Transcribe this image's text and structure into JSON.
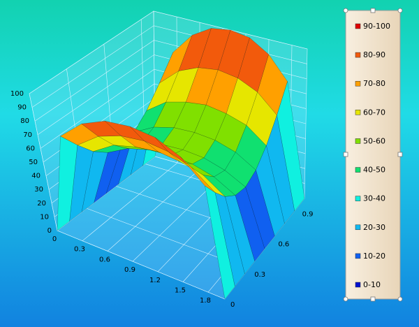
{
  "chart_data": {
    "type": "surface3d",
    "x": [
      0,
      0.25,
      0.5,
      0.75,
      1,
      1.25,
      1.5,
      1.75,
      2
    ],
    "y": [
      0,
      0.125,
      0.25,
      0.375,
      0.5,
      0.625,
      0.75,
      0.875,
      1
    ],
    "z": [
      [
        0,
        75,
        90,
        98,
        100,
        98,
        90,
        75,
        0
      ],
      [
        0,
        61,
        73,
        79,
        81,
        79,
        73,
        61,
        0
      ],
      [
        0,
        49,
        59,
        63,
        65,
        63,
        59,
        49,
        0
      ],
      [
        0,
        41,
        49,
        53,
        54,
        53,
        49,
        41,
        0
      ],
      [
        0,
        38,
        45,
        49,
        50,
        49,
        45,
        38,
        0
      ],
      [
        0,
        41,
        49,
        53,
        54,
        53,
        49,
        41,
        0
      ],
      [
        0,
        49,
        59,
        63,
        65,
        63,
        59,
        49,
        0
      ],
      [
        0,
        61,
        73,
        79,
        81,
        79,
        73,
        61,
        0
      ],
      [
        0,
        75,
        90,
        98,
        100,
        98,
        90,
        75,
        0
      ]
    ],
    "xlim": [
      0,
      2
    ],
    "ylim": [
      0,
      1
    ],
    "zlim": [
      0,
      100
    ],
    "xticks": [
      0,
      0.3,
      0.6,
      0.9,
      1.2,
      1.5,
      1.8
    ],
    "yticks": [
      0,
      0.3,
      0.6,
      0.9
    ],
    "zticks": [
      0,
      10,
      20,
      30,
      40,
      50,
      60,
      70,
      80,
      90,
      100
    ],
    "grid": true,
    "legend_position": "right",
    "levels": [
      {
        "label": "90-100",
        "min": 90,
        "max": 100,
        "color": "#e00000"
      },
      {
        "label": "80-90",
        "min": 80,
        "max": 90,
        "color": "#f25a0c"
      },
      {
        "label": "70-80",
        "min": 70,
        "max": 80,
        "color": "#ffa000"
      },
      {
        "label": "60-70",
        "min": 60,
        "max": 70,
        "color": "#e6e600"
      },
      {
        "label": "50-60",
        "min": 50,
        "max": 60,
        "color": "#80e000"
      },
      {
        "label": "40-50",
        "min": 40,
        "max": 50,
        "color": "#10e070"
      },
      {
        "label": "30-40",
        "min": 30,
        "max": 40,
        "color": "#10f0e0"
      },
      {
        "label": "20-30",
        "min": 20,
        "max": 30,
        "color": "#10b8f0"
      },
      {
        "label": "10-20",
        "min": 10,
        "max": 20,
        "color": "#1060f0"
      },
      {
        "label": "0-10",
        "min": 0,
        "max": 10,
        "color": "#0010d0"
      }
    ]
  }
}
